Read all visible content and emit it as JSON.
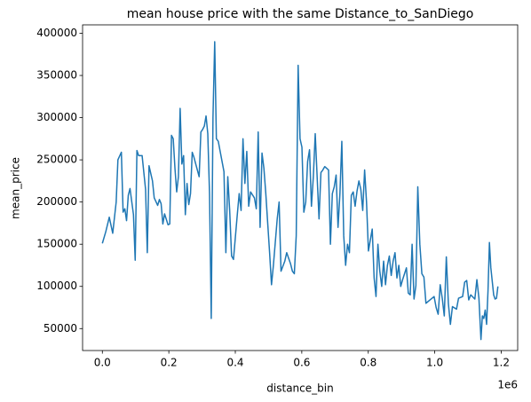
{
  "chart_data": {
    "type": "line",
    "title": "mean house price with the same Distance_to_SanDiego",
    "xlabel": "distance_bin",
    "ylabel": "mean_price",
    "x_offset_label": "1e6",
    "color": "#1f77b4",
    "x": [
      0,
      10400,
      20800,
      31200,
      41600,
      46800,
      57200,
      62400,
      67600,
      72800,
      78000,
      83200,
      93600,
      98800,
      104000,
      109200,
      119600,
      130000,
      135200,
      140400,
      150800,
      156000,
      166400,
      171600,
      176800,
      182000,
      187200,
      197600,
      202800,
      208000,
      213200,
      218400,
      223600,
      228800,
      234000,
      239200,
      244400,
      249600,
      254800,
      260000,
      265200,
      270400,
      275600,
      291200,
      296400,
      301600,
      306800,
      312000,
      317200,
      322400,
      327600,
      332800,
      338000,
      343000,
      348720,
      365880,
      371600,
      377320,
      383040,
      388760,
      394480,
      405920,
      411640,
      417360,
      423080,
      428800,
      434520,
      440240,
      445960,
      457400,
      463120,
      468840,
      474560,
      480280,
      486000,
      491720,
      503160,
      508880,
      514600,
      526040,
      531760,
      537480,
      548920,
      554640,
      566080,
      571800,
      577520,
      583240,
      589000,
      594715,
      600430,
      606145,
      611860,
      617575,
      623290,
      629005,
      634720,
      640435,
      646150,
      651865,
      657580,
      663295,
      669010,
      680440,
      686155,
      691870,
      697585,
      703300,
      709015,
      714730,
      720445,
      726160,
      731875,
      737590,
      743305,
      749020,
      754735,
      760450,
      766165,
      771880,
      777595,
      783310,
      789025,
      794740,
      800455,
      811885,
      817600,
      823315,
      829030,
      834745,
      840460,
      846175,
      851890,
      857605,
      863320,
      869035,
      874750,
      880465,
      886180,
      891895,
      897610,
      903325,
      909040,
      914755,
      920470,
      926185,
      931900,
      937615,
      943330,
      949000,
      955130,
      961260,
      967390,
      973520,
      985780,
      998040,
      1004170,
      1010300,
      1016430,
      1022560,
      1028690,
      1034820,
      1040950,
      1047080,
      1053210,
      1065470,
      1071600,
      1083860,
      1089990,
      1096120,
      1102250,
      1108380,
      1120640,
      1126770,
      1132900,
      1139000,
      1143250,
      1147500,
      1151750,
      1156000,
      1160250,
      1164500,
      1168750,
      1177250,
      1181500,
      1185750,
      1190000
    ],
    "values": [
      151000,
      165000,
      182000,
      163000,
      200000,
      250000,
      259000,
      188000,
      192000,
      178000,
      208000,
      216000,
      185000,
      131000,
      261000,
      255000,
      255000,
      215000,
      140000,
      243000,
      225000,
      205000,
      196000,
      203000,
      198000,
      174000,
      186000,
      173000,
      174000,
      279000,
      275000,
      240000,
      212000,
      230000,
      311000,
      245000,
      255000,
      185000,
      222000,
      197000,
      210000,
      259000,
      253000,
      230000,
      283000,
      286000,
      290000,
      302000,
      281000,
      210000,
      62000,
      300000,
      390000,
      275000,
      272000,
      236000,
      140000,
      230000,
      190000,
      136000,
      132000,
      185000,
      210000,
      190000,
      275000,
      222000,
      260000,
      195000,
      212000,
      205000,
      192000,
      283000,
      170000,
      258000,
      240000,
      210000,
      140000,
      102000,
      125000,
      180000,
      200000,
      118000,
      130000,
      140000,
      127000,
      118000,
      115000,
      160000,
      362000,
      275000,
      265000,
      188000,
      200000,
      248000,
      262000,
      195000,
      230000,
      281000,
      230000,
      180000,
      235000,
      238000,
      242000,
      238000,
      150000,
      210000,
      218000,
      232000,
      170000,
      210000,
      272000,
      160000,
      125000,
      150000,
      140000,
      208000,
      212000,
      195000,
      213000,
      225000,
      215000,
      190000,
      238000,
      200000,
      142000,
      168000,
      110000,
      88000,
      150000,
      118000,
      100000,
      130000,
      102000,
      125000,
      136000,
      113000,
      130000,
      140000,
      110000,
      125000,
      100000,
      108000,
      115000,
      122000,
      92000,
      90000,
      150000,
      85000,
      101000,
      218000,
      150000,
      115000,
      111000,
      80000,
      84000,
      88000,
      75000,
      67000,
      102000,
      86000,
      65000,
      135000,
      80000,
      55000,
      76000,
      73000,
      86000,
      88000,
      105000,
      107000,
      84000,
      90000,
      85000,
      108000,
      86000,
      37000,
      65000,
      62000,
      72000,
      55000,
      95000,
      152000,
      122000,
      90000,
      85000,
      86000,
      100000
    ],
    "xlim": [
      -59500,
      1249500
    ],
    "xticks": [
      {
        "value": 0,
        "label": "0.0"
      },
      {
        "value": 200000,
        "label": "0.2"
      },
      {
        "value": 400000,
        "label": "0.4"
      },
      {
        "value": 600000,
        "label": "0.6"
      },
      {
        "value": 800000,
        "label": "0.8"
      },
      {
        "value": 1000000,
        "label": "1.0"
      },
      {
        "value": 1200000,
        "label": "1.2"
      }
    ],
    "ylim": [
      24000,
      410000
    ],
    "yticks": [
      50000,
      100000,
      150000,
      200000,
      250000,
      300000,
      350000,
      400000
    ]
  }
}
